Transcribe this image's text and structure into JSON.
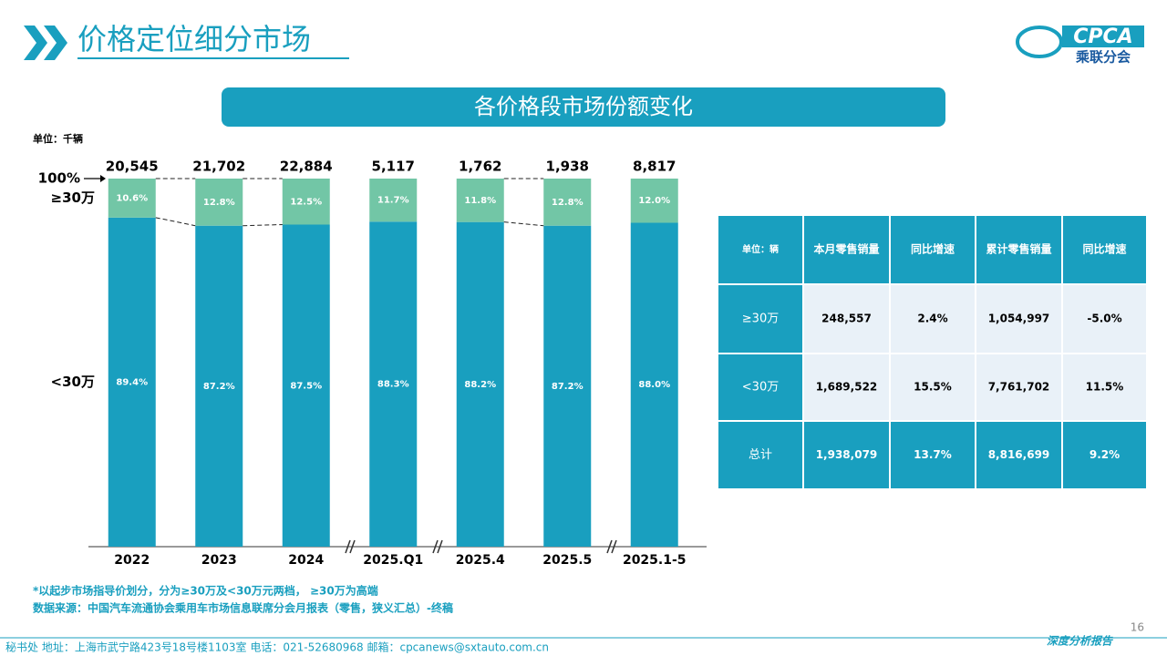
{
  "header": {
    "title": "价格定位细分市场",
    "logo": "CPCA",
    "logo_sub": "乘联分会"
  },
  "banner": "各价格段市场份额变化",
  "chart_data": {
    "type": "stacked_bar_100",
    "unit": "单位：千辆",
    "categories": [
      "2022",
      "2023",
      "2024",
      "2025.Q1",
      "2025.4",
      "2025.5",
      "2025.1-5"
    ],
    "series": [
      {
        "name": "<30万",
        "color": "#199fbf",
        "values": [
          89.4,
          87.2,
          87.5,
          88.3,
          88.2,
          87.2,
          88.0
        ],
        "value_labels": [
          "89.4%",
          "87.2%",
          "87.5%",
          "88.3%",
          "88.2%",
          "87.2%",
          "88.0%"
        ]
      },
      {
        "name": "≥30万",
        "color": "#72c6a6",
        "values": [
          10.6,
          12.8,
          12.5,
          11.7,
          11.8,
          12.8,
          12.0
        ],
        "value_labels": [
          "10.6%",
          "12.8%",
          "12.5%",
          "11.7%",
          "11.8%",
          "12.8%",
          "12.0%"
        ]
      }
    ],
    "totals": {
      "values": [
        20545,
        21702,
        22884,
        5117,
        1762,
        1938,
        8817
      ],
      "value_labels": [
        "20,545",
        "21,702",
        "22,884",
        "5,117",
        "1,762",
        "1,938",
        "8,817"
      ]
    },
    "ylim": [
      0,
      100
    ],
    "yticks": [
      {
        "value": 100,
        "label": "100%"
      }
    ],
    "grid": false
  },
  "table": {
    "header": [
      "单位：辆",
      "本月零售销量",
      "同比增速",
      "累计零售销量",
      "同比增速"
    ],
    "rows": [
      [
        "≥30万",
        "248,557",
        "2.4%",
        "1,054,997",
        "-5.0%"
      ],
      [
        "<30万",
        "1,689,522",
        "15.5%",
        "7,761,702",
        "11.5%"
      ],
      [
        "总计",
        "1,938,079",
        "13.7%",
        "8,816,699",
        "9.2%"
      ]
    ]
  },
  "notes": [
    "*以起步市场指导价划分，分为≥30万及<30万元两档， ≥30万为高端",
    "数据来源：中国汽车流通协会乘用车市场信息联席分会月报表（零售，狭义汇总）-终稿"
  ],
  "footer": {
    "address": "秘书处   地址：上海市武宁路423号18号楼1103室   电话：021-52680968   邮箱：cpcanews@sxtauto.com.cn",
    "report": "深度分析报告",
    "page": 16
  }
}
